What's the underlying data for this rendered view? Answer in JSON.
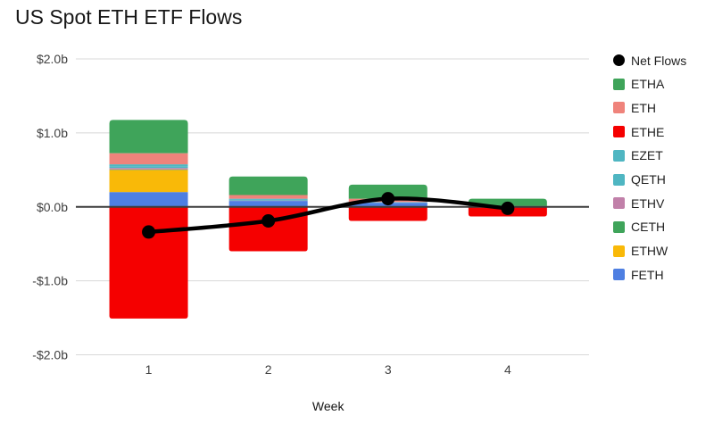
{
  "title": "US Spot ETH ETF Flows",
  "chart_data": {
    "type": "bar",
    "variant": "stacked-column-with-net-line",
    "title": "US Spot ETH ETF Flows",
    "xlabel": "Week",
    "ylabel": "",
    "categories": [
      "1",
      "2",
      "3",
      "4"
    ],
    "ylim": [
      -2,
      2
    ],
    "yticks": [
      {
        "value": 2,
        "label": "$2.0b"
      },
      {
        "value": 1,
        "label": "$1.0b"
      },
      {
        "value": 0,
        "label": "$0.0b"
      },
      {
        "value": -1,
        "label": "-$1.0b"
      },
      {
        "value": -2,
        "label": "-$2.0b"
      }
    ],
    "grid": true,
    "legend_position": "right",
    "series": [
      {
        "name": "ETHA",
        "color": "#3fa45a",
        "values": [
          0.45,
          0.25,
          0.19,
          0.1
        ]
      },
      {
        "name": "ETH",
        "color": "#ef837b",
        "values": [
          0.15,
          0.05,
          0.045,
          0.005
        ]
      },
      {
        "name": "ETHE",
        "color": "#f50000",
        "values": [
          -1.51,
          -0.6,
          -0.19,
          -0.13
        ]
      },
      {
        "name": "EZET",
        "color": "#4fb6c2",
        "values": [
          0.025,
          0.015,
          0.005,
          0
        ]
      },
      {
        "name": "QETH",
        "color": "#4fb6c2",
        "values": [
          0.025,
          0.01,
          0.005,
          0
        ]
      },
      {
        "name": "ETHV",
        "color": "#c180a9",
        "values": [
          0.02,
          0.005,
          0,
          0
        ]
      },
      {
        "name": "CETH",
        "color": "#3fa45a",
        "values": [
          0.005,
          0,
          0,
          0
        ]
      },
      {
        "name": "ETHW",
        "color": "#f9b908",
        "values": [
          0.3,
          0,
          0,
          0
        ]
      },
      {
        "name": "FETH",
        "color": "#4e7fe2",
        "values": [
          0.2,
          0.08,
          0.055,
          0.005
        ]
      }
    ],
    "line_series": {
      "name": "Net Flows",
      "color": "#000000",
      "values": [
        -0.34,
        -0.19,
        0.11,
        -0.02
      ]
    }
  }
}
